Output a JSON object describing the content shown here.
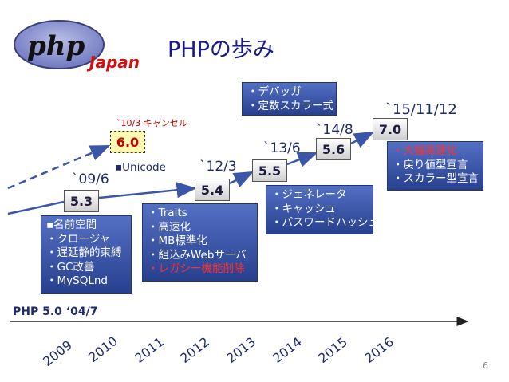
{
  "title": "PHPの歩み",
  "logo": {
    "text": "php",
    "subtext": "Japan"
  },
  "releases": [
    {
      "id": "5.3",
      "date": "`09/6",
      "features": [
        "▪名前空間",
        "・クロージャ",
        "・遅延静的束縛",
        "・GC改善",
        "・MySQLnd"
      ],
      "highlight": []
    },
    {
      "id": "6.0",
      "date": "`10/3 キャンセル",
      "features": [
        "▪Unicode"
      ],
      "highlight": []
    },
    {
      "id": "5.4",
      "date": "`12/3",
      "features": [
        "・Traits",
        "・高速化",
        "・MB標準化",
        "・組込みWebサーバ",
        "・レガシー機能削除"
      ],
      "highlight": [
        4
      ]
    },
    {
      "id": "5.5",
      "date": "`13/6",
      "features": [
        "・ジェネレータ",
        "・キャッシュ",
        "・パスワードハッシュ"
      ],
      "highlight": []
    },
    {
      "id": "5.6",
      "date": "`14/8",
      "features": [
        "・デバッガ",
        "・定数スカラー式"
      ],
      "highlight": []
    },
    {
      "id": "7.0",
      "date": "`15/11/12",
      "features": [
        "・大幅高速化",
        "・戻り値型宣言",
        "・スカラー型宣言"
      ],
      "highlight": [
        0
      ]
    }
  ],
  "timeline": {
    "start_label": "PHP 5.0 ‘04/7",
    "years": [
      "2009",
      "2010",
      "2011",
      "2012",
      "2013",
      "2014",
      "2015",
      "2016"
    ]
  },
  "page_number": "6",
  "colors": {
    "accent": "#27408e",
    "highlight": "#c00000",
    "cancelled_box": "#fff8b0"
  }
}
